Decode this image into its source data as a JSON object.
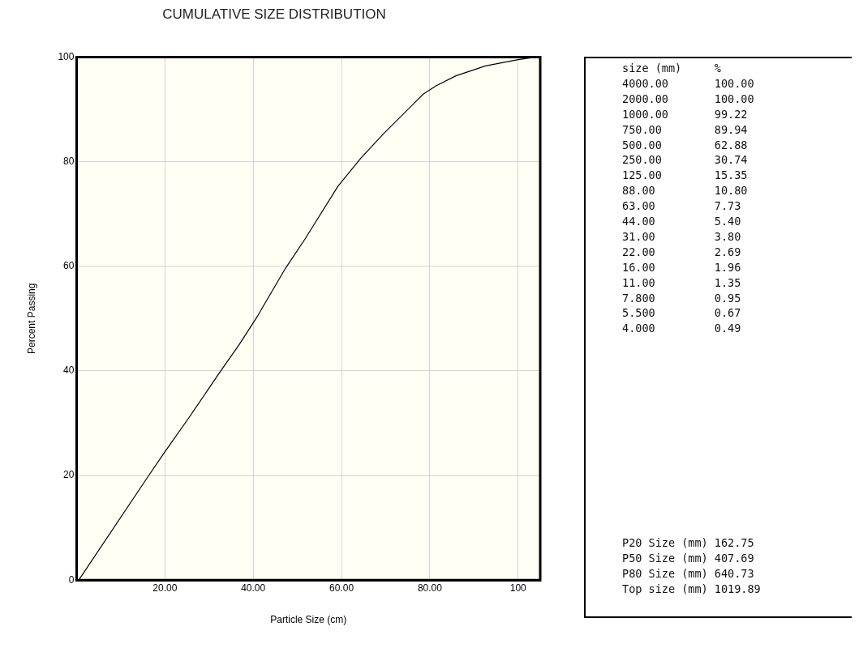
{
  "chart_data": {
    "type": "line",
    "title": "CUMULATIVE SIZE DISTRIBUTION",
    "xlabel": "Particle Size (cm)",
    "ylabel": "Percent Passing",
    "series": [
      {
        "color": "#000000",
        "x": [
          0.5,
          16.1,
          19.9,
          25.4,
          32.5,
          36.9,
          41.0,
          47.3,
          51.8,
          59.2,
          64.4,
          69.6,
          78.5,
          81.4,
          85.9,
          92.6,
          100,
          104.1
        ],
        "values": [
          0,
          19.7,
          24.4,
          31.0,
          39.8,
          45.1,
          50.5,
          59.6,
          65.3,
          75.3,
          80.7,
          85.4,
          92.9,
          94.5,
          96.4,
          98.3,
          99.5,
          100
        ]
      }
    ],
    "xlim": [
      0,
      105
    ],
    "ylim": [
      0,
      100
    ],
    "xticks": [
      {
        "value": 20,
        "label": "20.00"
      },
      {
        "value": 40,
        "label": "40.00"
      },
      {
        "value": 60,
        "label": "60.00"
      },
      {
        "value": 80,
        "label": "80.00"
      },
      100
    ],
    "yticks": [
      0,
      20,
      40,
      60,
      80,
      100
    ],
    "grid": true,
    "legend": false,
    "marker": "none",
    "line_style": "solid",
    "annotations": [
      "size (mm)     %",
      "4000.00       100.00",
      "2000.00       100.00",
      "1000.00       99.22",
      "750.00        89.94",
      "500.00        62.88",
      "250.00        30.74",
      "125.00        15.35",
      "88.00         10.80",
      "63.00         7.73",
      "44.00         5.40",
      "31.00         3.80",
      "22.00         2.69",
      "16.00         1.96",
      "11.00         1.35",
      "7.800         0.95",
      "5.500         0.67",
      "4.000         0.49",
      "P20 Size (mm) 162.75",
      "P50 Size (mm) 407.69",
      "P80 Size (mm) 640.73",
      "Top size (mm) 1019.89"
    ]
  }
}
